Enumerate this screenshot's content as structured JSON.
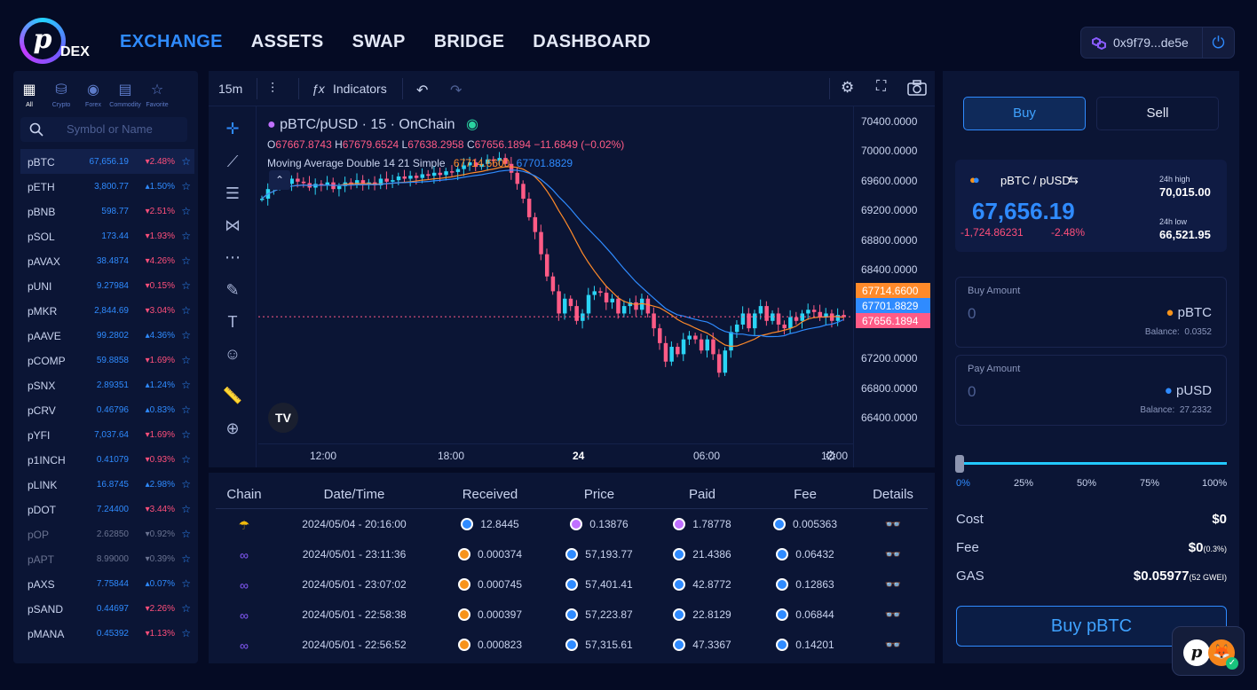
{
  "brand": {
    "logo_letter": "p",
    "name": "DEX"
  },
  "nav": [
    "EXCHANGE",
    "ASSETS",
    "SWAP",
    "BRIDGE",
    "DASHBOARD"
  ],
  "wallet": {
    "address": "0x9f79...de5e"
  },
  "sidebar": {
    "categories": [
      "All",
      "Crypto",
      "Forex",
      "Commodity",
      "Favorite"
    ],
    "search_placeholder": "Symbol or Name",
    "pairs": [
      {
        "name": "pBTC",
        "price": "67,656.19",
        "change": "▾2.48%",
        "dir": "dn"
      },
      {
        "name": "pETH",
        "price": "3,800.77",
        "change": "▴1.50%",
        "dir": "up"
      },
      {
        "name": "pBNB",
        "price": "598.77",
        "change": "▾2.51%",
        "dir": "dn"
      },
      {
        "name": "pSOL",
        "price": "173.44",
        "change": "▾1.93%",
        "dir": "dn"
      },
      {
        "name": "pAVAX",
        "price": "38.4874",
        "change": "▾4.26%",
        "dir": "dn"
      },
      {
        "name": "pUNI",
        "price": "9.27984",
        "change": "▾0.15%",
        "dir": "dn"
      },
      {
        "name": "pMKR",
        "price": "2,844.69",
        "change": "▾3.04%",
        "dir": "dn"
      },
      {
        "name": "pAAVE",
        "price": "99.2802",
        "change": "▴4.36%",
        "dir": "up"
      },
      {
        "name": "pCOMP",
        "price": "59.8858",
        "change": "▾1.69%",
        "dir": "dn"
      },
      {
        "name": "pSNX",
        "price": "2.89351",
        "change": "▴1.24%",
        "dir": "up"
      },
      {
        "name": "pCRV",
        "price": "0.46796",
        "change": "▴0.83%",
        "dir": "up"
      },
      {
        "name": "pYFI",
        "price": "7,037.64",
        "change": "▾1.69%",
        "dir": "dn"
      },
      {
        "name": "p1INCH",
        "price": "0.41079",
        "change": "▾0.93%",
        "dir": "dn"
      },
      {
        "name": "pLINK",
        "price": "16.8745",
        "change": "▴2.98%",
        "dir": "up"
      },
      {
        "name": "pDOT",
        "price": "7.24400",
        "change": "▾3.44%",
        "dir": "dn"
      },
      {
        "name": "pOP",
        "price": "2.62850",
        "change": "▾0.92%",
        "dir": "dim"
      },
      {
        "name": "pAPT",
        "price": "8.99000",
        "change": "▾0.39%",
        "dir": "dim"
      },
      {
        "name": "pAXS",
        "price": "7.75844",
        "change": "▴0.07%",
        "dir": "up"
      },
      {
        "name": "pSAND",
        "price": "0.44697",
        "change": "▾2.26%",
        "dir": "dn"
      },
      {
        "name": "pMANA",
        "price": "0.45392",
        "change": "▾1.13%",
        "dir": "dn"
      }
    ]
  },
  "chart": {
    "interval": "15m",
    "indicators_label": "Indicators",
    "symbol_line": "pBTC/pUSD · 15 · OnChain",
    "ohlc": {
      "o": "67667.8743",
      "h": "67679.6524",
      "l": "67638.2958",
      "c": "67656.1894",
      "chg": "−11.6849 (−0.02%)"
    },
    "ma_label": "Moving Average Double 14 21 Simple",
    "ma1": "67714.6600",
    "ma2": "67701.8829",
    "y_ticks": [
      "70400.0000",
      "70000.0000",
      "69600.0000",
      "69200.0000",
      "68800.0000",
      "68400.0000",
      "67200.0000",
      "66800.0000",
      "66400.0000"
    ],
    "price_tags": {
      "ma1": "67714.6600",
      "ma2": "67701.8829",
      "last": "67656.1894"
    },
    "x_ticks": [
      "12:00",
      "18:00",
      "24",
      "06:00",
      "12:00"
    ],
    "colors": {
      "up": "#2ad4f5",
      "down": "#ff5b86",
      "ma1": "#ff8a2a",
      "ma2": "#2f8bff"
    }
  },
  "trades": {
    "headers": [
      "Chain",
      "Date/Time",
      "Received",
      "Price",
      "Paid",
      "Fee",
      "Details"
    ],
    "rows": [
      {
        "date": "2024/05/04 - 20:16:00",
        "received": "12.8445",
        "price": "0.13876",
        "paid": "1.78778",
        "fee": "0.005363"
      },
      {
        "date": "2024/05/01 - 23:11:36",
        "received": "0.000374",
        "price": "57,193.77",
        "paid": "21.4386",
        "fee": "0.06432"
      },
      {
        "date": "2024/05/01 - 23:07:02",
        "received": "0.000745",
        "price": "57,401.41",
        "paid": "42.8772",
        "fee": "0.12863"
      },
      {
        "date": "2024/05/01 - 22:58:38",
        "received": "0.000397",
        "price": "57,223.87",
        "paid": "22.8129",
        "fee": "0.06844"
      },
      {
        "date": "2024/05/01 - 22:56:52",
        "received": "0.000823",
        "price": "57,315.61",
        "paid": "47.3367",
        "fee": "0.14201"
      }
    ]
  },
  "trade_panel": {
    "buy_tab": "Buy",
    "sell_tab": "Sell",
    "pair": "pBTC / pUSD",
    "price": "67,656.19",
    "change_abs": "-1,724.86231",
    "change_pct": "-2.48%",
    "high_label": "24h high",
    "high": "70,015.00",
    "low_label": "24h low",
    "low": "66,521.95",
    "buy_amount_label": "Buy Amount",
    "buy_amount": "0",
    "buy_coin": "pBTC",
    "balance_label": "Balance:",
    "buy_balance": "0.0352",
    "pay_amount_label": "Pay Amount",
    "pay_amount": "0",
    "pay_coin": "pUSD",
    "pay_balance": "27.2332",
    "slider_value": 0,
    "slider_marks": [
      "0%",
      "25%",
      "50%",
      "75%",
      "100%"
    ],
    "cost_label": "Cost",
    "cost": "$0",
    "fee_label": "Fee",
    "fee": "$0",
    "fee_pct": "(0.3%)",
    "gas_label": "GAS",
    "gas": "$0.05977",
    "gas_gwei": "(52 GWEI)",
    "submit": "Buy pBTC"
  }
}
